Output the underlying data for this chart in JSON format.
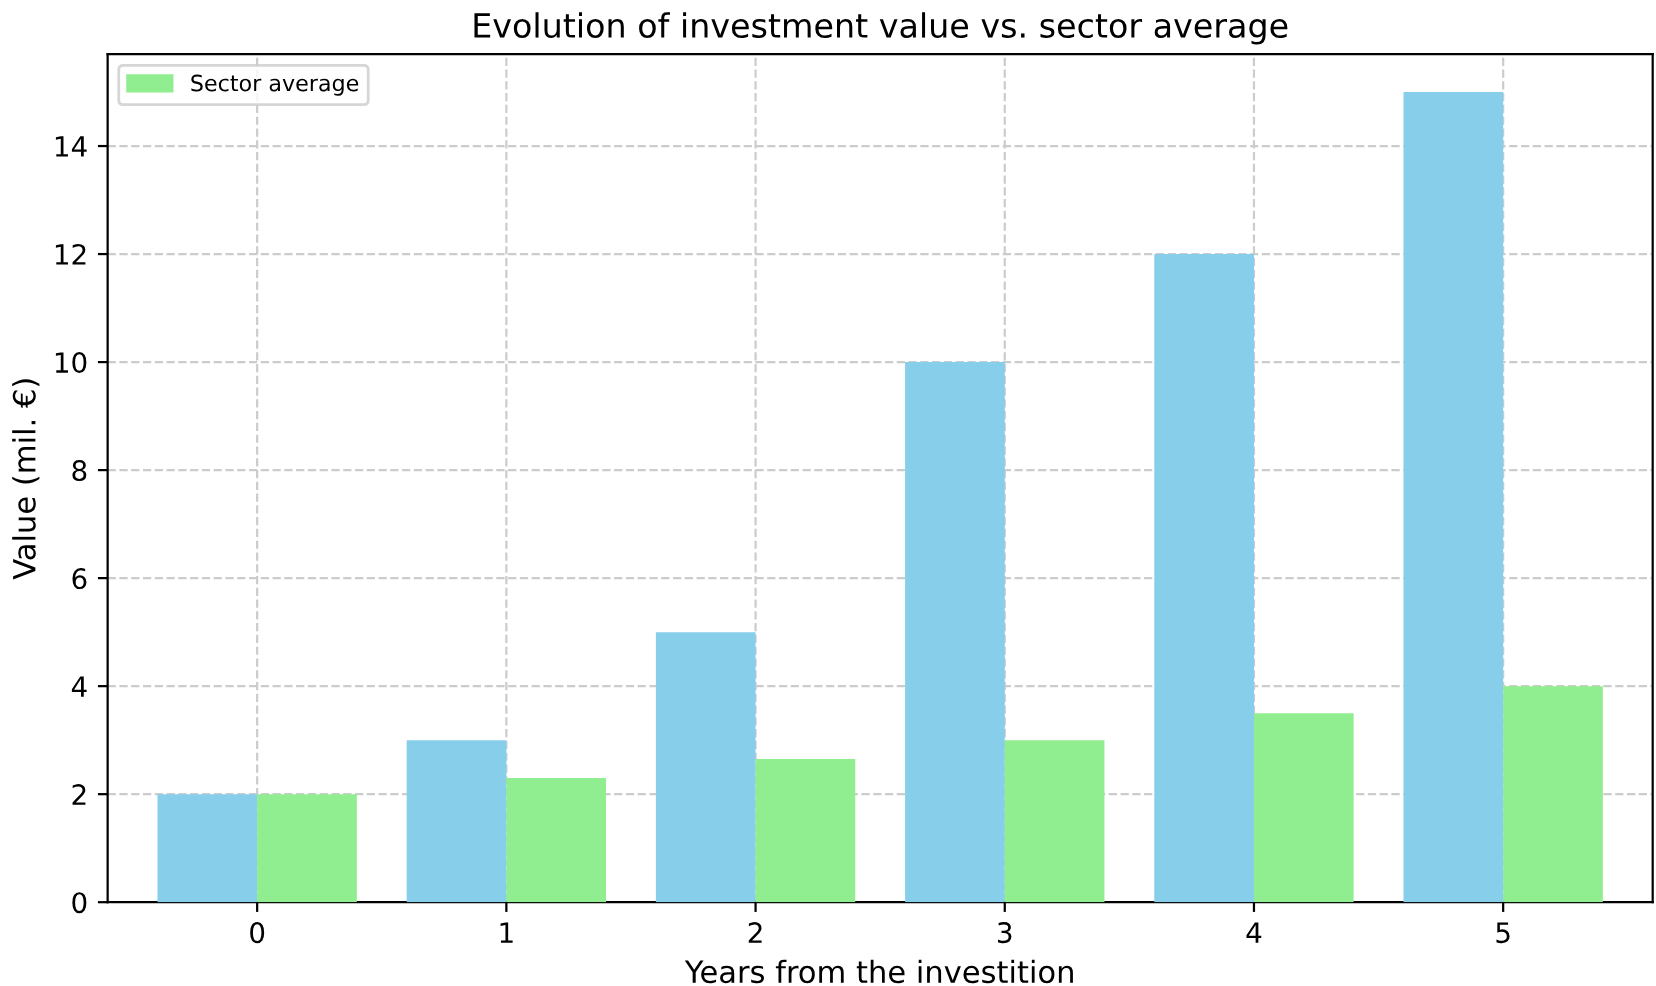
{
  "chart_data": {
    "type": "bar",
    "title": "Evolution of investment value vs. sector average",
    "xlabel": "Years from the investition",
    "ylabel": "Value (mil. €)",
    "categories": [
      "0",
      "1",
      "2",
      "3",
      "4",
      "5"
    ],
    "series": [
      {
        "color": "#87ceeb",
        "values": [
          2,
          3,
          5,
          10,
          12,
          15
        ]
      },
      {
        "name": "Sector average",
        "color": "#90ee90",
        "values": [
          2,
          2.3,
          2.65,
          3.0,
          3.5,
          4.0
        ]
      }
    ],
    "ylim": [
      0,
      15.7
    ],
    "yticks": [
      0,
      2,
      4,
      6,
      8,
      10,
      12,
      14
    ],
    "grid": true,
    "legend": "top left"
  }
}
